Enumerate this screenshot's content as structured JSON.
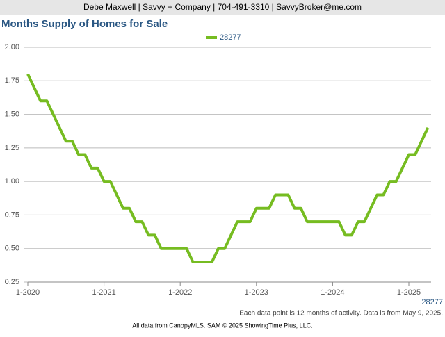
{
  "header": "Debe Maxwell | Savvy + Company | 704-491-3310 | SavvyBroker@me.com",
  "footer": "All data from CanopyMLS. SAM © 2025 ShowingTime Plus, LLC.",
  "chart_data": {
    "type": "line",
    "title": "Months Supply of Homes for Sale",
    "note": "Each data point is 12 months of activity. Data is from May 9, 2025.",
    "x_label": "28277",
    "categories": [
      "1-2020",
      null,
      null,
      null,
      null,
      null,
      null,
      null,
      null,
      null,
      null,
      null,
      "1-2021",
      null,
      null,
      null,
      null,
      null,
      null,
      null,
      null,
      null,
      null,
      null,
      "1-2022",
      null,
      null,
      null,
      null,
      null,
      null,
      null,
      null,
      null,
      null,
      null,
      "1-2023",
      null,
      null,
      null,
      null,
      null,
      null,
      null,
      null,
      null,
      null,
      null,
      "1-2024",
      null,
      null,
      null,
      null,
      null,
      null,
      null,
      null,
      null,
      null,
      null,
      "1-2025",
      null,
      null,
      null
    ],
    "series": [
      {
        "name": "28277",
        "color": "#76bc21",
        "values": [
          1.8,
          1.7,
          1.6,
          1.6,
          1.5,
          1.4,
          1.3,
          1.3,
          1.2,
          1.2,
          1.1,
          1.1,
          1.0,
          1.0,
          0.9,
          0.8,
          0.8,
          0.7,
          0.7,
          0.6,
          0.6,
          0.5,
          0.5,
          0.5,
          0.5,
          0.5,
          0.4,
          0.4,
          0.4,
          0.4,
          0.5,
          0.5,
          0.6,
          0.7,
          0.7,
          0.7,
          0.8,
          0.8,
          0.8,
          0.9,
          0.9,
          0.9,
          0.8,
          0.8,
          0.7,
          0.7,
          0.7,
          0.7,
          0.7,
          0.7,
          0.6,
          0.6,
          0.7,
          0.7,
          0.8,
          0.9,
          0.9,
          1.0,
          1.0,
          1.1,
          1.2,
          1.2,
          1.3,
          1.4
        ]
      }
    ],
    "ylim": [
      0.25,
      2.0
    ],
    "yticks": [
      {
        "value": 0.25,
        "label": "0.25"
      },
      {
        "value": 0.5,
        "label": "0.50"
      },
      {
        "value": 0.75,
        "label": "0.75"
      },
      {
        "value": 1.0,
        "label": "1.00"
      },
      {
        "value": 1.25,
        "label": "1.25"
      },
      {
        "value": 1.5,
        "label": "1.50"
      },
      {
        "value": 1.75,
        "label": "1.75"
      },
      {
        "value": 2.0,
        "label": "2.00"
      }
    ],
    "grid": true
  }
}
